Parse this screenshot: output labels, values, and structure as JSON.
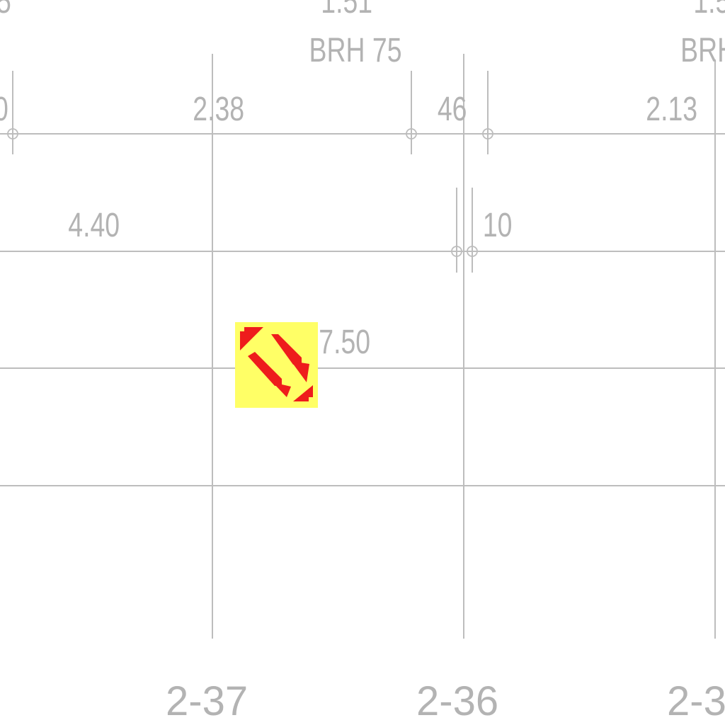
{
  "drawing": {
    "background_color": "#ffffff",
    "line_color": "#bdbdbd",
    "text_color": "#b3b3b3"
  },
  "dimensions": {
    "top_partial_left": "5",
    "top_partial_mid": "1.51",
    "top_partial_right": "1.5",
    "brh_mid": "BRH 75",
    "brh_right": "BRH",
    "partial_zero": "0",
    "d_238": "2.38",
    "d_46": "46",
    "d_213": "2.13",
    "d_440": "4.40",
    "d_10": "10",
    "d_750": "7.50"
  },
  "grid_labels": {
    "left": "2-37",
    "middle": "2-36",
    "right": "2-3"
  },
  "fire_symbol": {
    "icon": "fire-hydrant-arrows-icon",
    "outer_color": "#ffff66",
    "inner_color": "#ee1c1c",
    "stripe_color": "#ffff66"
  }
}
